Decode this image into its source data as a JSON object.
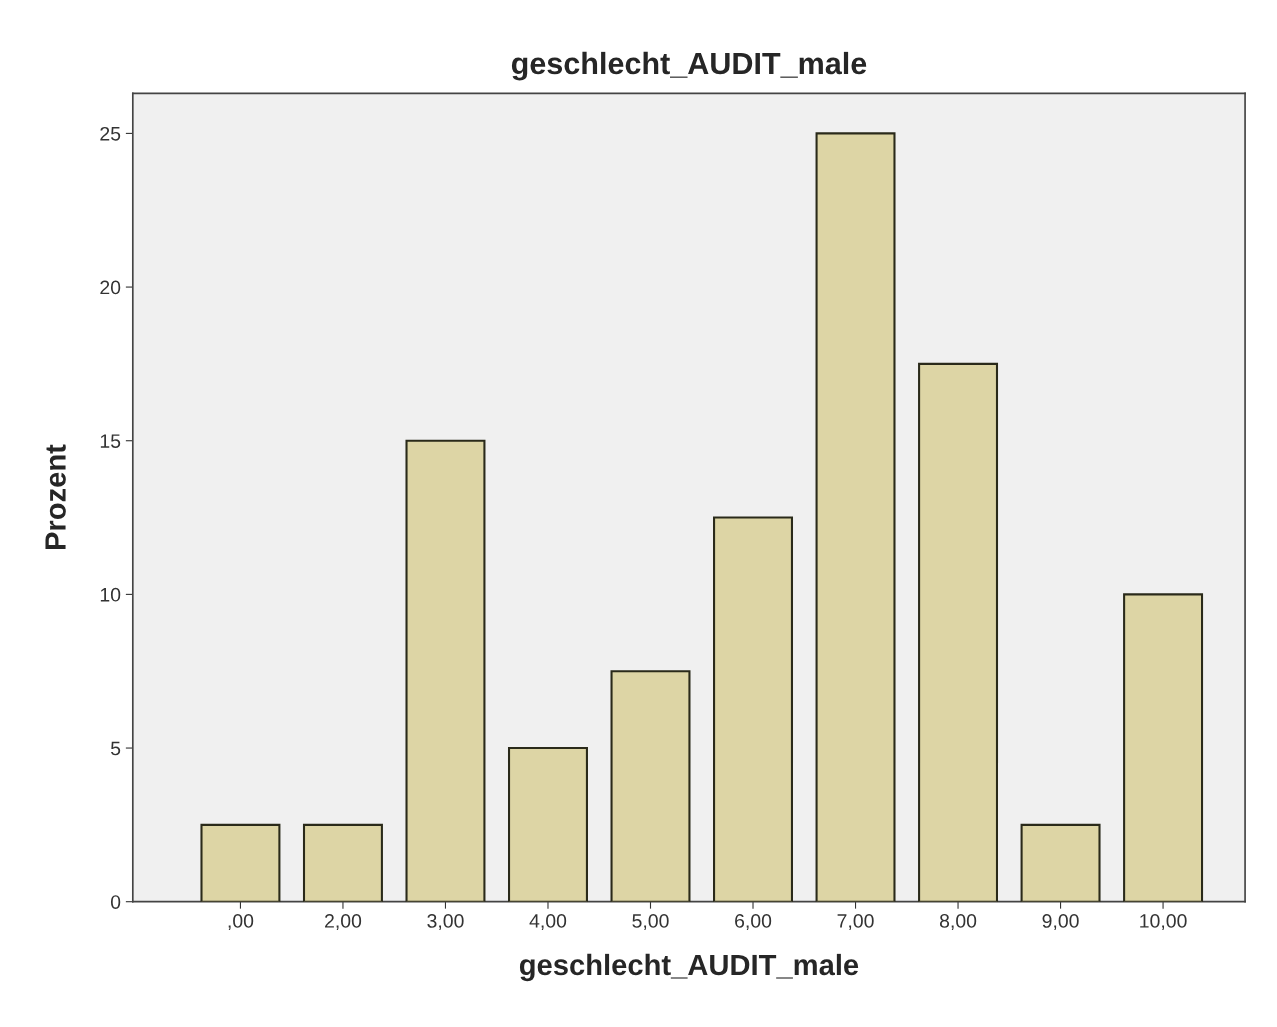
{
  "chart_data": {
    "type": "bar",
    "title": "geschlecht_AUDIT_male",
    "xlabel": "geschlecht_AUDIT_male",
    "ylabel": "Prozent",
    "categories": [
      ",00",
      "2,00",
      "3,00",
      "4,00",
      "5,00",
      "6,00",
      "7,00",
      "8,00",
      "9,00",
      "10,00"
    ],
    "values": [
      2.5,
      2.5,
      15,
      5,
      7.5,
      12.5,
      25,
      17.5,
      2.5,
      10
    ],
    "color": "#ddd5a5",
    "ylim": [
      0,
      26.3
    ],
    "yticks": [
      0,
      5,
      10,
      15,
      20,
      25
    ],
    "grid": false,
    "legend": false
  }
}
